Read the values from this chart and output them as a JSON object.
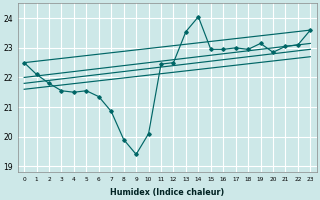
{
  "xlabel": "Humidex (Indice chaleur)",
  "bg_color": "#cde8e8",
  "grid_color": "#ffffff",
  "line_color": "#006666",
  "xlim": [
    -0.5,
    23.5
  ],
  "ylim": [
    18.8,
    24.5
  ],
  "yticks": [
    19,
    20,
    21,
    22,
    23,
    24
  ],
  "xticks": [
    0,
    1,
    2,
    3,
    4,
    5,
    6,
    7,
    8,
    9,
    10,
    11,
    12,
    13,
    14,
    15,
    16,
    17,
    18,
    19,
    20,
    21,
    22,
    23
  ],
  "series": [
    [
      0,
      22.5
    ],
    [
      1,
      22.1
    ],
    [
      2,
      21.8
    ],
    [
      3,
      21.55
    ],
    [
      4,
      21.5
    ],
    [
      5,
      21.55
    ],
    [
      6,
      21.35
    ],
    [
      7,
      20.85
    ],
    [
      8,
      19.9
    ],
    [
      9,
      19.4
    ],
    [
      10,
      20.1
    ],
    [
      11,
      22.45
    ],
    [
      12,
      22.5
    ],
    [
      13,
      23.55
    ],
    [
      14,
      24.05
    ],
    [
      15,
      22.95
    ],
    [
      16,
      22.95
    ],
    [
      17,
      23.0
    ],
    [
      18,
      22.95
    ],
    [
      19,
      23.15
    ],
    [
      20,
      22.85
    ],
    [
      21,
      23.05
    ],
    [
      22,
      23.1
    ],
    [
      23,
      23.6
    ]
  ],
  "trend_lines": [
    [
      [
        0,
        22.5
      ],
      [
        23,
        23.6
      ]
    ],
    [
      [
        0,
        22.0
      ],
      [
        23,
        23.15
      ]
    ],
    [
      [
        0,
        21.8
      ],
      [
        23,
        22.95
      ]
    ],
    [
      [
        0,
        21.6
      ],
      [
        23,
        22.7
      ]
    ]
  ]
}
